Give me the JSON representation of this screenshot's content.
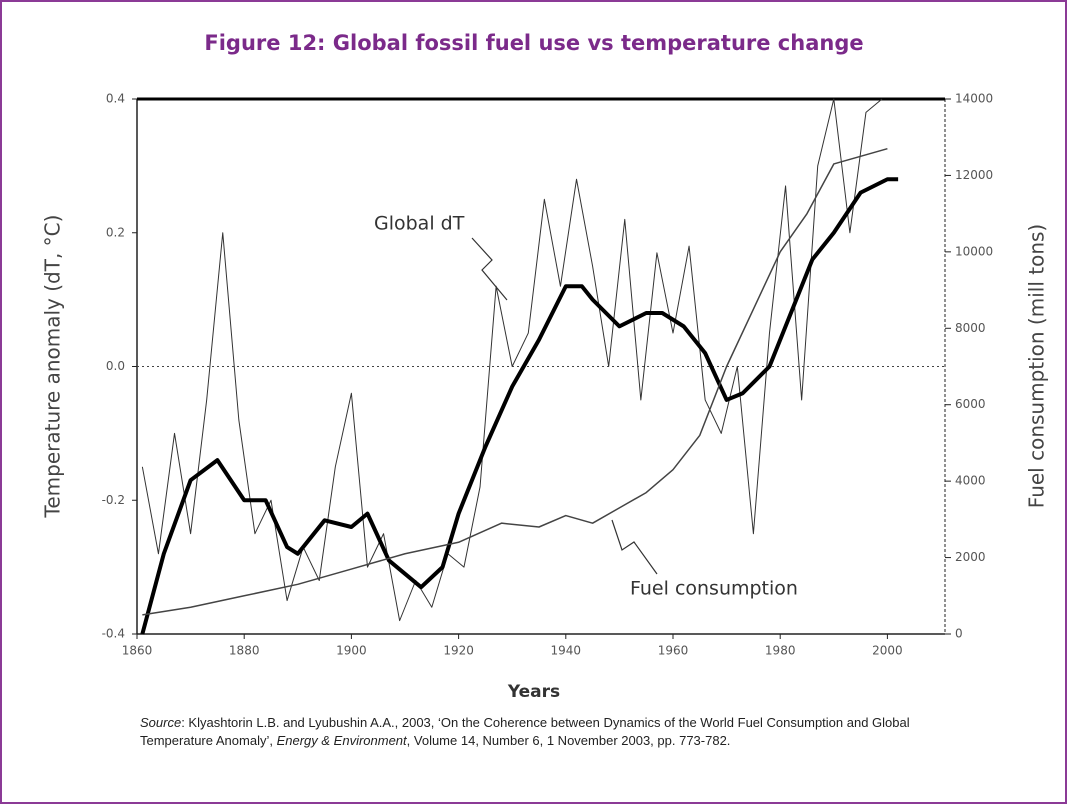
{
  "chart_data": {
    "type": "line",
    "title": "Figure 12: Global fossil fuel use vs temperature change",
    "xlabel": "Years",
    "ylabel": "Temperature anomaly (dT, °C)",
    "y2label": "Fuel consumption (mill tons)",
    "xlim": [
      1860,
      2010
    ],
    "xticks": [
      1860,
      1880,
      1900,
      1920,
      1940,
      1960,
      1980,
      2000
    ],
    "ylim": [
      -0.4,
      0.4
    ],
    "yticks": [
      -0.4,
      -0.2,
      {
        "value": 0,
        "label": "0.0"
      },
      0.2,
      0.4
    ],
    "y2lim": [
      0,
      14000
    ],
    "y2ticks": [
      0,
      2000,
      4000,
      6000,
      8000,
      10000,
      12000,
      14000
    ],
    "reference_line": 0,
    "series": [
      {
        "name": "Global dT",
        "color": "#333333",
        "line_width": 1,
        "x": [
          1861,
          1864,
          1867,
          1870,
          1873,
          1876,
          1879,
          1882,
          1885,
          1888,
          1891,
          1894,
          1897,
          1900,
          1903,
          1906,
          1909,
          1912,
          1915,
          1918,
          1921,
          1924,
          1927,
          1930,
          1933,
          1936,
          1939,
          1942,
          1945,
          1948,
          1951,
          1954,
          1957,
          1960,
          1963,
          1966,
          1969,
          1972,
          1975,
          1978,
          1981,
          1984,
          1987,
          1990,
          1993,
          1996,
          1999
        ],
        "values": [
          -0.15,
          -0.28,
          -0.1,
          -0.25,
          -0.05,
          0.2,
          -0.08,
          -0.25,
          -0.2,
          -0.35,
          -0.27,
          -0.32,
          -0.15,
          -0.04,
          -0.3,
          -0.25,
          -0.38,
          -0.32,
          -0.36,
          -0.28,
          -0.3,
          -0.18,
          0.12,
          0.0,
          0.05,
          0.25,
          0.12,
          0.28,
          0.15,
          0.0,
          0.22,
          -0.05,
          0.17,
          0.05,
          0.18,
          -0.05,
          -0.1,
          0.0,
          -0.25,
          0.05,
          0.27,
          -0.05,
          0.3,
          0.4,
          0.2,
          0.38,
          0.4
        ]
      },
      {
        "color": "#000000",
        "line_width": 4,
        "x": [
          1861,
          1865,
          1870,
          1875,
          1880,
          1884,
          1888,
          1890,
          1895,
          1900,
          1903,
          1907,
          1910,
          1913,
          1917,
          1920,
          1925,
          1930,
          1935,
          1940,
          1943,
          1945,
          1950,
          1955,
          1958,
          1962,
          1966,
          1970,
          1973,
          1978,
          1982,
          1986,
          1990,
          1995,
          2000,
          2002
        ],
        "values": [
          -0.4,
          -0.28,
          -0.17,
          -0.14,
          -0.2,
          -0.2,
          -0.27,
          -0.28,
          -0.23,
          -0.24,
          -0.22,
          -0.29,
          -0.31,
          -0.33,
          -0.3,
          -0.22,
          -0.12,
          -0.03,
          0.04,
          0.12,
          0.12,
          0.1,
          0.06,
          0.08,
          0.08,
          0.06,
          0.02,
          -0.05,
          -0.04,
          0.0,
          0.08,
          0.16,
          0.2,
          0.26,
          0.28,
          0.28
        ]
      },
      {
        "name": "Fuel consumption",
        "color": "#444444",
        "line_width": 1.5,
        "axis": "y2",
        "x": [
          1861,
          1870,
          1880,
          1890,
          1900,
          1910,
          1920,
          1928,
          1935,
          1940,
          1945,
          1950,
          1955,
          1960,
          1965,
          1970,
          1975,
          1980,
          1985,
          1990,
          1995,
          2000
        ],
        "values": [
          500,
          700,
          1000,
          1300,
          1700,
          2100,
          2400,
          2900,
          2800,
          3100,
          2900,
          3300,
          3700,
          4300,
          5200,
          7000,
          8500,
          10000,
          11000,
          12300,
          12500,
          12700
        ]
      }
    ],
    "source": [
      {
        "text": "Source",
        "italic": true
      },
      {
        "text": ": Klyashtorin L.B. and Lyubushin A.A., 2003, ‘On the Coherence between Dynamics of the World Fuel Consumption and Global Temperature Anomaly’, ",
        "italic": false
      },
      {
        "text": "Energy & Environment",
        "italic": true
      },
      {
        "text": ", Volume 14, Number 6, 1 November 2003, pp. 773-782.",
        "italic": false
      }
    ]
  }
}
